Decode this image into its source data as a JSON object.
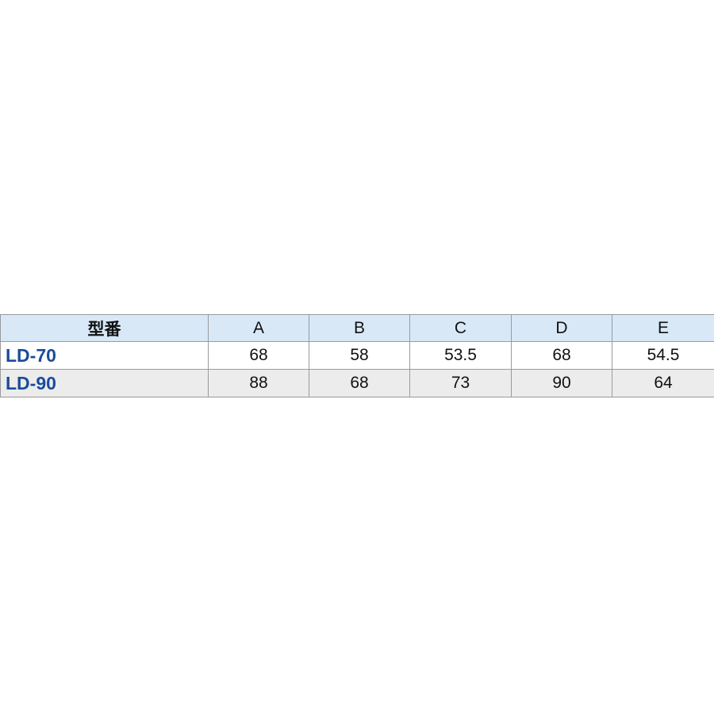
{
  "table": {
    "header": [
      "型番",
      "A",
      "B",
      "C",
      "D",
      "E"
    ],
    "rows": [
      [
        "LD-70",
        "68",
        "58",
        "53.5",
        "68",
        "54.5"
      ],
      [
        "LD-90",
        "88",
        "68",
        "73",
        "90",
        "64"
      ]
    ]
  }
}
